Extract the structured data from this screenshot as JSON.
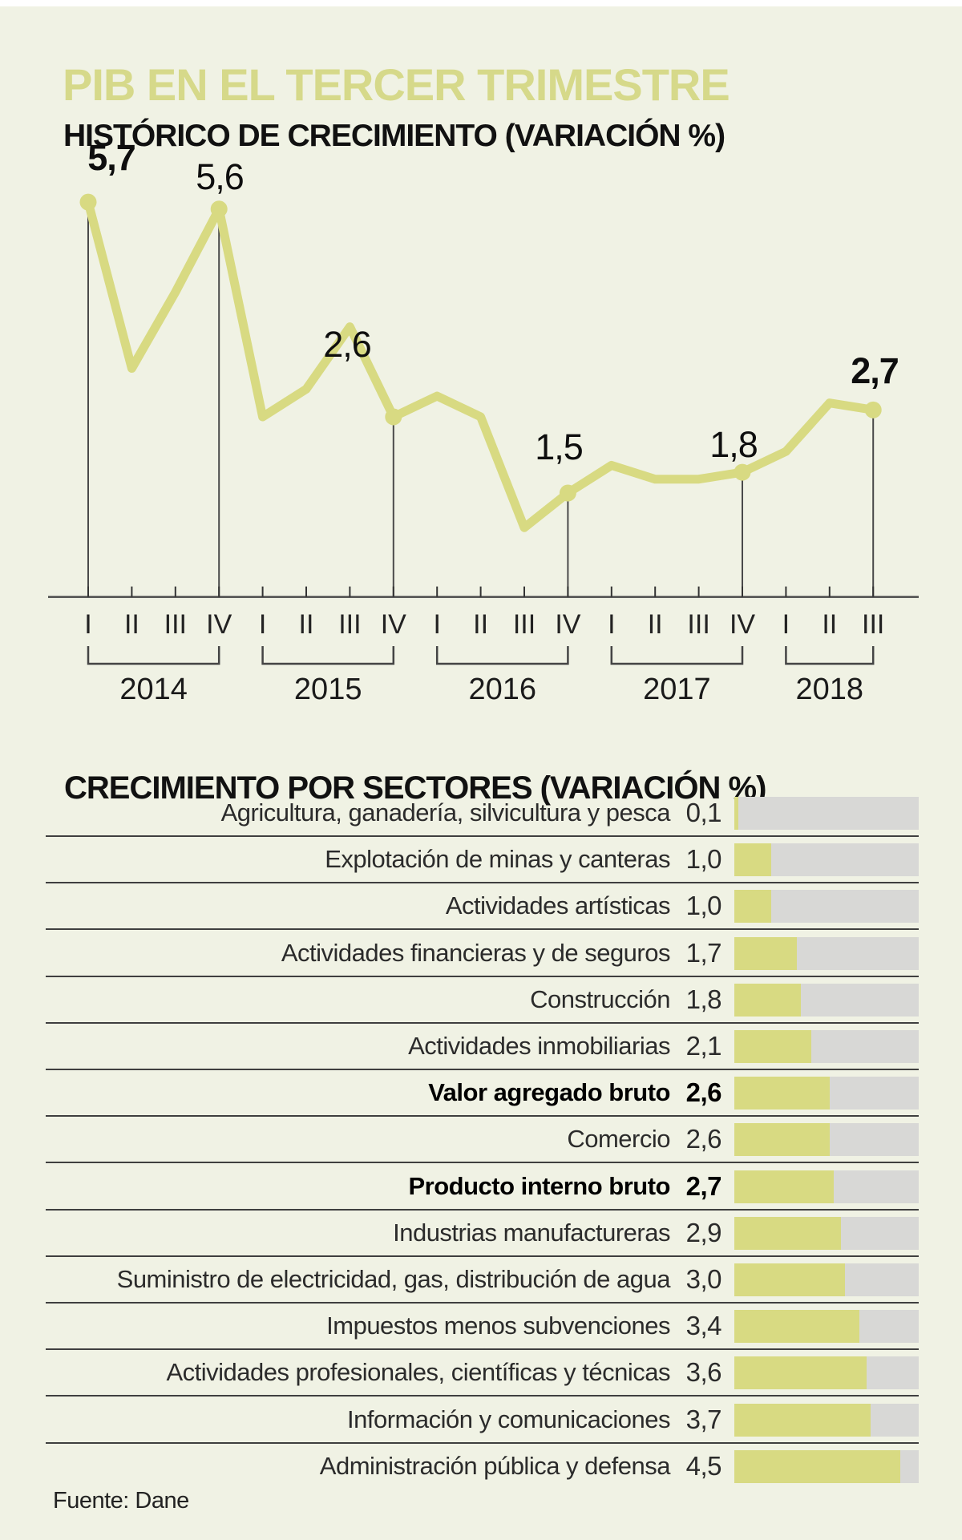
{
  "header": {
    "title": "PIB EN EL TERCER TRIMESTRE"
  },
  "line_chart_section": {
    "title": "HISTÓRICO DE CRECIMIENTO (VARIACIÓN %)"
  },
  "sector_section": {
    "title": "CRECIMIENTO POR SECTORES (VARIACIÓN %)"
  },
  "footer": {
    "source": "Fuente: Dane"
  },
  "colors": {
    "background": "#f0f2e4",
    "accent_green": "#d8da82",
    "title_green": "#d6d98a",
    "bar_track_gray": "#d8d8d6",
    "line_dark": "#3f3f3f",
    "text_black": "#111111"
  },
  "chart_data": [
    {
      "type": "line",
      "title": "HISTÓRICO DE CRECIMIENTO (VARIACIÓN %)",
      "unit": "variación %",
      "x": [
        "2014-I",
        "2014-II",
        "2014-III",
        "2014-IV",
        "2015-I",
        "2015-II",
        "2015-III",
        "2015-IV",
        "2016-I",
        "2016-II",
        "2016-III",
        "2016-IV",
        "2017-I",
        "2017-II",
        "2017-III",
        "2017-IV",
        "2018-I",
        "2018-II",
        "2018-III"
      ],
      "quarter_ticks": [
        "I",
        "II",
        "III",
        "IV",
        "I",
        "II",
        "III",
        "IV",
        "I",
        "II",
        "III",
        "IV",
        "I",
        "II",
        "III",
        "IV",
        "I",
        "II",
        "III"
      ],
      "values": [
        5.7,
        3.3,
        4.4,
        5.6,
        2.6,
        3.0,
        3.9,
        2.6,
        2.9,
        2.6,
        1.0,
        1.5,
        1.9,
        1.7,
        1.7,
        1.8,
        2.1,
        2.8,
        2.7
      ],
      "ylim": [
        0,
        6.2
      ],
      "grid": false,
      "legend": "none",
      "years": [
        {
          "label": "2014",
          "from": 0,
          "to": 3
        },
        {
          "label": "2015",
          "from": 4,
          "to": 7
        },
        {
          "label": "2016",
          "from": 8,
          "to": 11
        },
        {
          "label": "2017",
          "from": 12,
          "to": 15
        },
        {
          "label": "2018",
          "from": 16,
          "to": 18
        }
      ],
      "annotations": [
        {
          "index": 0,
          "label": "5,7",
          "bold": true
        },
        {
          "index": 3,
          "label": "5,6",
          "bold": false
        },
        {
          "index": 7,
          "label": "2,6",
          "bold": false
        },
        {
          "index": 11,
          "label": "1,5",
          "bold": false
        },
        {
          "index": 15,
          "label": "1,8",
          "bold": false
        },
        {
          "index": 18,
          "label": "2,7",
          "bold": true
        }
      ]
    },
    {
      "type": "bar",
      "title": "CRECIMIENTO POR SECTORES (VARIACIÓN %)",
      "orientation": "horizontal",
      "xlim": [
        0,
        5.0
      ],
      "categories": [
        "Agricultura, ganadería, silvicultura y pesca",
        "Explotación de minas y canteras",
        "Actividades artísticas",
        "Actividades financieras y de seguros",
        "Construcción",
        "Actividades inmobiliarias",
        "Valor agregado bruto",
        "Comercio",
        "Producto interno bruto",
        "Industrias manufactureras",
        "Suministro de electricidad, gas, distribución de agua",
        "Impuestos menos subvenciones",
        "Actividades profesionales, científicas y técnicas",
        "Información y comunicaciones",
        "Administración pública y defensa"
      ],
      "values": [
        0.1,
        1.0,
        1.0,
        1.7,
        1.8,
        2.1,
        2.6,
        2.6,
        2.7,
        2.9,
        3.0,
        3.4,
        3.6,
        3.7,
        4.5
      ],
      "display_values": [
        "0,1",
        "1,0",
        "1,0",
        "1,7",
        "1,8",
        "2,1",
        "2,6",
        "2,6",
        "2,7",
        "2,9",
        "3,0",
        "3,4",
        "3,6",
        "3,7",
        "4,5"
      ],
      "bold_rows": [
        6,
        8
      ]
    }
  ]
}
